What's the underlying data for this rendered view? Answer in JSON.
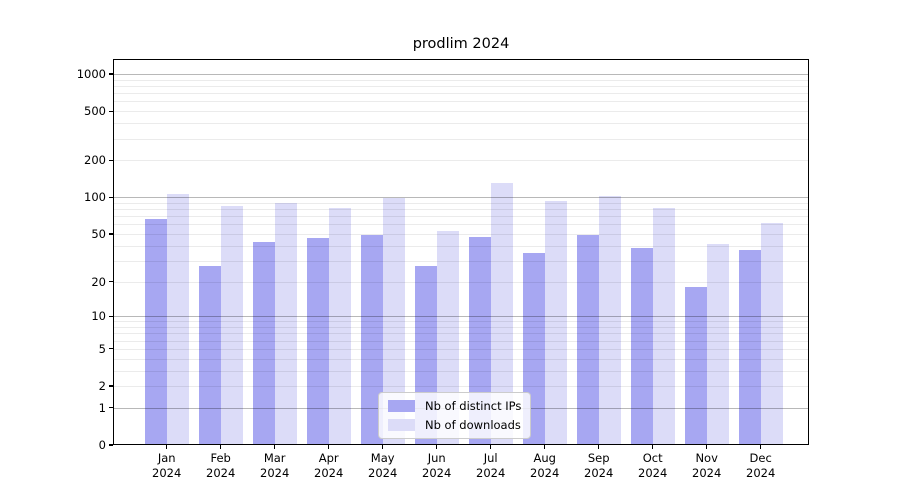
{
  "title": "prodlim 2024",
  "colors": {
    "distinct_ips_bar": "#a7a7f2",
    "downloads_bar": "#dcdcf8",
    "axis": "#000000",
    "legend_border": "#cccccc"
  },
  "legend": {
    "items": [
      {
        "label": "Nb of distinct IPs",
        "color": "#a7a7f2"
      },
      {
        "label": "Nb of downloads",
        "color": "#dcdcf8"
      }
    ]
  },
  "chart_data": {
    "type": "bar",
    "title": "prodlim 2024",
    "categories": [
      "Jan",
      "Feb",
      "Mar",
      "Apr",
      "May",
      "Jun",
      "Jul",
      "Aug",
      "Sep",
      "Oct",
      "Nov",
      "Dec"
    ],
    "x_year": "2024",
    "x_tick_labels": [
      "Jan 2024",
      "Feb 2024",
      "Mar 2024",
      "Apr 2024",
      "May 2024",
      "Jun 2024",
      "Jul 2024",
      "Aug 2024",
      "Sep 2024",
      "Oct 2024",
      "Nov 2024",
      "Dec 2024"
    ],
    "series": [
      {
        "name": "Nb of distinct IPs",
        "color": "#a7a7f2",
        "values": [
          66,
          27,
          43,
          46,
          49,
          27,
          47,
          35,
          49,
          38,
          18,
          37
        ]
      },
      {
        "name": "Nb of downloads",
        "color": "#dcdcf8",
        "values": [
          106,
          85,
          90,
          82,
          98,
          53,
          130,
          93,
          103,
          81,
          41,
          61
        ]
      }
    ],
    "xlabel": "",
    "ylabel": "",
    "y_scale": "log1p",
    "y_ticks": [
      0,
      1,
      2,
      5,
      10,
      20,
      50,
      100,
      200,
      500,
      1000
    ],
    "ylim": [
      0,
      1325
    ],
    "grid": "horizontal, minor log lines light, decade lines darker, drawn over bars",
    "legend_position": "bottom-center-inside"
  }
}
